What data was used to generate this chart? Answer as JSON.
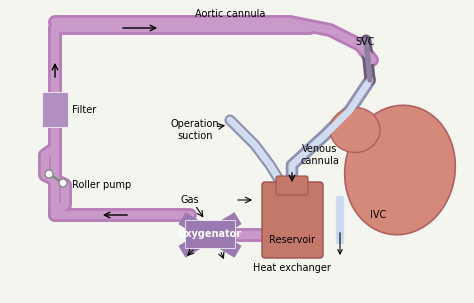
{
  "bg_color": "#f5f5f0",
  "purple_tube": "#b87db8",
  "purple_light": "#c99ac9",
  "blue_tube": "#b8c8e8",
  "blue_light": "#d0dcf0",
  "heart_fill": "#d4897a",
  "heart_stroke": "#b06060",
  "reservoir_fill": "#c4786a",
  "oxygenator_fill": "#9a7ab0",
  "filter_fill": "#b090c0",
  "labels": {
    "aortic_cannula": "Aortic cannula",
    "svc": "SVC",
    "filter": "Filter",
    "roller_pump": "Roller pump",
    "operation_suction": "Operation\nsuction",
    "venous_cannula": "Venous\ncannula",
    "ivc": "IVC",
    "reservoir": "Reservoir",
    "oxygenator": "Oxygenator",
    "heat_exchanger": "Heat exchanger",
    "gas": "Gas"
  },
  "font_size": 7,
  "tube_lw": 8,
  "tube_lw_inner": 5
}
